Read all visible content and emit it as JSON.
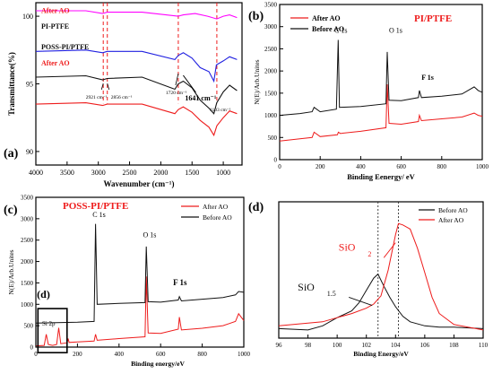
{
  "chart_data": [
    {
      "panel": "(a)",
      "type": "line",
      "xlabel": "Wavenumber (cm⁻¹)",
      "ylabel": "Transmittance(%)",
      "xlim": [
        4000,
        700
      ],
      "ylim": [
        89,
        101
      ],
      "x_ticks": [
        "4000",
        "3500",
        "3000",
        "2500",
        "2000",
        "1500",
        "1000"
      ],
      "y_ticks": [
        "90",
        "95",
        "100"
      ],
      "grid": false,
      "series": [
        {
          "name": "After AO",
          "color": "#ff00ff",
          "x": [
            4000,
            3200,
            2930,
            2860,
            2300,
            1725,
            1640,
            1450,
            1250,
            1105,
            1000,
            900,
            780
          ],
          "y": [
            100.4,
            100.4,
            100.2,
            100.3,
            100.3,
            100.0,
            100.1,
            100.2,
            100.0,
            99.8,
            100.0,
            100.1,
            99.9
          ]
        },
        {
          "name": "PI-PTFE",
          "color": "#2020e0",
          "x": [
            4000,
            3200,
            2930,
            2860,
            2300,
            1775,
            1720,
            1640,
            1500,
            1370,
            1230,
            1150,
            1110,
            1000,
            900,
            780
          ],
          "y": [
            97.4,
            97.5,
            97.3,
            97.4,
            97.4,
            96.8,
            97.1,
            97.3,
            96.9,
            96.2,
            95.9,
            95.2,
            96.4,
            96.7,
            97.0,
            96.8
          ]
        },
        {
          "name": "POSS-PI/PTFE",
          "color": "#111111",
          "x": [
            4000,
            3200,
            2930,
            2860,
            2300,
            1775,
            1720,
            1640,
            1500,
            1370,
            1230,
            1150,
            1105,
            1000,
            900,
            780
          ],
          "y": [
            95.5,
            95.6,
            95.3,
            95.4,
            95.5,
            94.6,
            95.0,
            95.2,
            94.7,
            93.8,
            93.2,
            92.8,
            93.6,
            94.4,
            94.9,
            94.5
          ]
        },
        {
          "name": "After AO",
          "color": "#ee1c1c",
          "x": [
            4000,
            3200,
            2930,
            2860,
            2300,
            1775,
            1720,
            1641,
            1500,
            1370,
            1230,
            1150,
            1103,
            1000,
            900,
            780
          ],
          "y": [
            93.5,
            93.6,
            93.4,
            93.5,
            93.5,
            92.8,
            93.1,
            93.3,
            92.9,
            92.3,
            91.8,
            91.2,
            91.9,
            92.5,
            93.0,
            92.8
          ]
        }
      ],
      "reference_lines_x": [
        2921,
        2856,
        1720,
        1103
      ],
      "annotations": [
        "2921 cm⁻¹",
        "2856 cm⁻¹",
        "1720 cm⁻¹",
        "1641 cm⁻¹",
        "1103 cm⁻¹"
      ]
    },
    {
      "panel": "(b)",
      "type": "line",
      "title": "PI/PTFE",
      "xlabel": "Binding Eenergy/ eV",
      "ylabel": "N(E)/Arb.Unites",
      "xlim": [
        0,
        1000
      ],
      "ylim": [
        0,
        3500
      ],
      "x_ticks": [
        "0",
        "200",
        "400",
        "600",
        "800",
        "1000"
      ],
      "y_ticks": [
        "0",
        "500",
        "1000",
        "1500",
        "2000",
        "2500",
        "3000",
        "3500"
      ],
      "series": [
        {
          "name": "After AO",
          "color": "#ee1c1c",
          "x": [
            0,
            100,
            160,
            170,
            200,
            285,
            290,
            300,
            400,
            525,
            531,
            540,
            600,
            685,
            690,
            700,
            800,
            900,
            960,
            980,
            1000
          ],
          "y": [
            420,
            470,
            500,
            620,
            520,
            560,
            620,
            590,
            640,
            720,
            1700,
            820,
            800,
            860,
            1000,
            880,
            920,
            960,
            1050,
            1000,
            980
          ]
        },
        {
          "name": "Before AO",
          "color": "#111111",
          "x": [
            0,
            100,
            160,
            170,
            200,
            280,
            289,
            295,
            400,
            525,
            531,
            540,
            600,
            685,
            690,
            700,
            800,
            900,
            960,
            980,
            1000
          ],
          "y": [
            1000,
            1040,
            1080,
            1180,
            1080,
            1140,
            2700,
            1180,
            1200,
            1260,
            2430,
            1340,
            1330,
            1400,
            1560,
            1400,
            1430,
            1480,
            1640,
            1560,
            1520
          ]
        }
      ],
      "annotations": [
        "C 1s",
        "O 1s",
        "F 1s"
      ]
    },
    {
      "panel": "(c)",
      "type": "line",
      "title": "POSS-PI/PTFE",
      "xlabel": "Binding energy/eV",
      "ylabel": "N(E)/Arb.Unites",
      "xlim": [
        0,
        1000
      ],
      "ylim": [
        0,
        3500
      ],
      "x_ticks": [
        "0",
        "200",
        "400",
        "600",
        "800",
        "1000"
      ],
      "y_ticks": [
        "0",
        "500",
        "1000",
        "1500",
        "2000",
        "2500",
        "3000",
        "3500"
      ],
      "series": [
        {
          "name": "After AO",
          "color": "#ee1c1c",
          "x": [
            0,
            40,
            50,
            60,
            80,
            100,
            110,
            120,
            150,
            155,
            160,
            200,
            280,
            287,
            295,
            400,
            525,
            531,
            540,
            600,
            685,
            690,
            700,
            800,
            900,
            960,
            975,
            1000
          ],
          "y": [
            30,
            40,
            300,
            60,
            40,
            60,
            450,
            80,
            100,
            200,
            110,
            120,
            140,
            300,
            160,
            200,
            240,
            1650,
            330,
            320,
            420,
            700,
            400,
            440,
            500,
            600,
            780,
            620
          ]
        },
        {
          "name": "Before AO",
          "color": "#111111",
          "x": [
            0,
            100,
            200,
            280,
            287,
            295,
            400,
            525,
            531,
            540,
            600,
            685,
            690,
            700,
            800,
            900,
            960,
            975,
            1000
          ],
          "y": [
            560,
            570,
            580,
            600,
            2880,
            1000,
            1020,
            1040,
            2350,
            1060,
            1050,
            1100,
            1180,
            1080,
            1120,
            1160,
            1220,
            1300,
            1280
          ]
        }
      ],
      "annotations": [
        "C 1s",
        "O 1s",
        "F 1s",
        "Si 2p"
      ],
      "inset_label": "(d)"
    },
    {
      "panel": "(d)",
      "type": "line",
      "xlabel": "Binding Energy/eV",
      "xlim": [
        96,
        110
      ],
      "x_ticks": [
        "96",
        "98",
        "100",
        "102",
        "104",
        "106",
        "108",
        "110"
      ],
      "series": [
        {
          "name": "Before AO",
          "color": "#111111",
          "x": [
            96,
            98,
            99,
            100,
            101,
            101.5,
            102,
            102.5,
            102.8,
            103.2,
            103.6,
            104,
            104.5,
            105,
            106,
            107,
            108,
            110
          ],
          "y": [
            70,
            60,
            90,
            150,
            200,
            260,
            350,
            440,
            470,
            380,
            300,
            230,
            160,
            120,
            90,
            80,
            80,
            70
          ]
        },
        {
          "name": "After AO",
          "color": "#ee1c1c",
          "x": [
            96,
            98,
            99,
            100,
            101,
            102,
            102.5,
            103,
            103.5,
            104,
            104.2,
            104.5,
            105,
            105.5,
            106,
            106.5,
            107,
            108,
            110
          ],
          "y": [
            90,
            110,
            120,
            150,
            180,
            220,
            250,
            310,
            500,
            760,
            840,
            830,
            800,
            660,
            480,
            300,
            180,
            100,
            60
          ]
        }
      ],
      "reference_lines_x": [
        102.8,
        104.2
      ],
      "annotations": [
        "SiO",
        "1.5",
        "SiO",
        "2"
      ]
    }
  ]
}
